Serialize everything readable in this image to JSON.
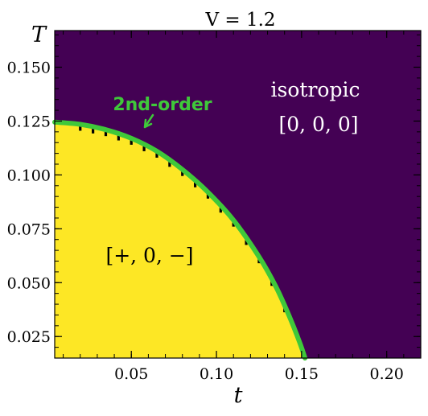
{
  "chart_data": {
    "type": "heatmap",
    "title": "V = 1.2",
    "xlabel": "t",
    "ylabel": "T",
    "xlim": [
      0.005,
      0.22
    ],
    "ylim": [
      0.015,
      0.167
    ],
    "x_ticks": [
      0.05,
      0.1,
      0.15,
      0.2
    ],
    "x_tick_labels": [
      "0.05",
      "0.10",
      "0.15",
      "0.20"
    ],
    "y_ticks": [
      0.025,
      0.05,
      0.075,
      0.1,
      0.125,
      0.15
    ],
    "y_tick_labels": [
      "0.025",
      "0.050",
      "0.075",
      "0.100",
      "0.125",
      "0.150"
    ],
    "grid": false,
    "phases": [
      {
        "label": "isotropic",
        "order_parameter": "[0, 0, 0]",
        "color": "#440154"
      },
      {
        "label": "",
        "order_parameter": "[+, 0, −]",
        "color": "#fde725"
      }
    ],
    "transition_line": {
      "label": "2nd-order",
      "color": "#3fc83a",
      "points": [
        {
          "t": 0.005,
          "T": 0.1245
        },
        {
          "t": 0.02,
          "T": 0.1235
        },
        {
          "t": 0.035,
          "T": 0.121
        },
        {
          "t": 0.05,
          "T": 0.117
        },
        {
          "t": 0.065,
          "T": 0.111
        },
        {
          "t": 0.08,
          "T": 0.1025
        },
        {
          "t": 0.095,
          "T": 0.092
        },
        {
          "t": 0.11,
          "T": 0.079
        },
        {
          "t": 0.125,
          "T": 0.062
        },
        {
          "t": 0.135,
          "T": 0.048
        },
        {
          "t": 0.143,
          "T": 0.034
        },
        {
          "t": 0.149,
          "T": 0.022
        },
        {
          "t": 0.152,
          "T": 0.015
        }
      ]
    }
  }
}
